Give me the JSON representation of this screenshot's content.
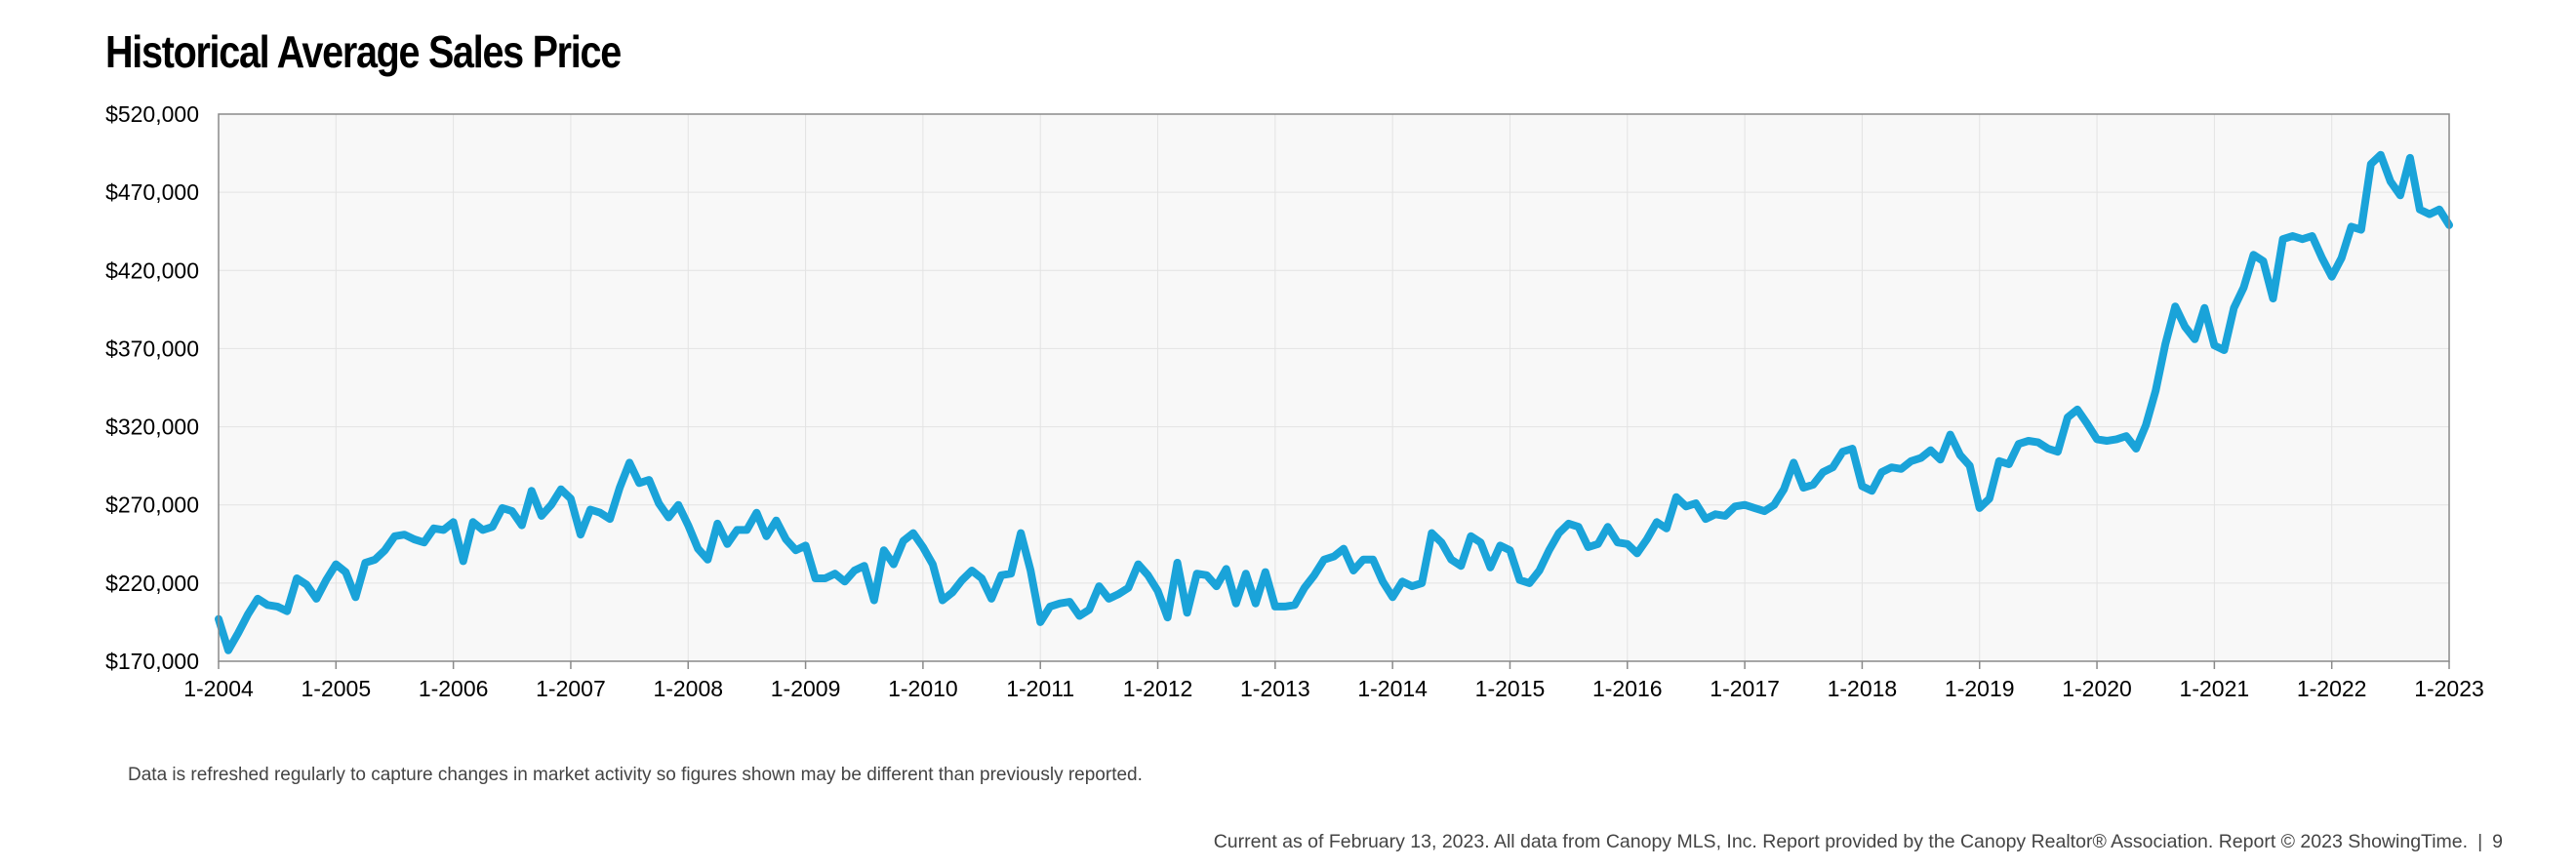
{
  "chart_data": {
    "type": "line",
    "title": "Historical Average Sales Price",
    "xlabel": "",
    "ylabel": "",
    "x_tick_labels": [
      "1-2004",
      "1-2005",
      "1-2006",
      "1-2007",
      "1-2008",
      "1-2009",
      "1-2010",
      "1-2011",
      "1-2012",
      "1-2013",
      "1-2014",
      "1-2015",
      "1-2016",
      "1-2017",
      "1-2018",
      "1-2019",
      "1-2020",
      "1-2021",
      "1-2022",
      "1-2023"
    ],
    "y_tick_labels": [
      "$520,000",
      "$470,000",
      "$420,000",
      "$370,000",
      "$320,000",
      "$270,000",
      "$220,000",
      "$170,000"
    ],
    "y_ticks": [
      520000,
      470000,
      420000,
      370000,
      320000,
      270000,
      220000,
      170000
    ],
    "xlim": [
      "2004-01",
      "2023-01"
    ],
    "ylim": [
      170000,
      520000
    ],
    "grid": true,
    "colors": {
      "line": "#1aa3d9",
      "plot_background": "#f8f8f8",
      "grid": "#e3e3e3",
      "axis": "#8a8a8a"
    },
    "series": [
      {
        "start": "2004-01",
        "frequency": "monthly",
        "values": [
          197000,
          177000,
          188000,
          200000,
          210000,
          206000,
          205000,
          202000,
          223000,
          219000,
          210000,
          222000,
          232000,
          227000,
          211000,
          233000,
          235000,
          241000,
          250000,
          251000,
          248000,
          246000,
          255000,
          254000,
          259000,
          234000,
          259000,
          254000,
          256000,
          268000,
          266000,
          257000,
          279000,
          263000,
          270000,
          280000,
          274000,
          251000,
          267000,
          265000,
          261000,
          281000,
          297000,
          284000,
          286000,
          271000,
          262000,
          270000,
          257000,
          242000,
          235000,
          258000,
          245000,
          254000,
          254000,
          265000,
          250000,
          260000,
          248000,
          241000,
          244000,
          223000,
          223000,
          226000,
          221000,
          228000,
          231000,
          209000,
          241000,
          232000,
          247000,
          252000,
          243000,
          232000,
          209000,
          214000,
          222000,
          228000,
          223000,
          210000,
          225000,
          226000,
          252000,
          228000,
          195000,
          205000,
          207000,
          208000,
          199000,
          203000,
          218000,
          210000,
          213000,
          217000,
          232000,
          225000,
          215000,
          198000,
          233000,
          201000,
          226000,
          225000,
          218000,
          229000,
          207000,
          226000,
          207000,
          227000,
          205000,
          205000,
          206000,
          217000,
          225000,
          235000,
          237000,
          242000,
          228000,
          235000,
          235000,
          221000,
          211000,
          221000,
          218000,
          220000,
          252000,
          246000,
          235000,
          231000,
          250000,
          246000,
          230000,
          244000,
          241000,
          222000,
          220000,
          228000,
          241000,
          252000,
          258000,
          256000,
          243000,
          245000,
          256000,
          246000,
          245000,
          239000,
          248000,
          259000,
          255000,
          275000,
          269000,
          271000,
          261000,
          264000,
          263000,
          269000,
          270000,
          268000,
          266000,
          270000,
          280000,
          297000,
          281000,
          283000,
          291000,
          294000,
          304000,
          306000,
          282000,
          279000,
          291000,
          294000,
          293000,
          298000,
          300000,
          305000,
          299000,
          315000,
          302000,
          295000,
          268000,
          274000,
          298000,
          296000,
          309000,
          311000,
          310000,
          306000,
          304000,
          326000,
          331000,
          322000,
          312000,
          311000,
          312000,
          314000,
          306000,
          321000,
          343000,
          373000,
          397000,
          384000,
          376000,
          396000,
          372000,
          369000,
          396000,
          409000,
          430000,
          426000,
          402000,
          440000,
          442000,
          440000,
          442000,
          428000,
          416000,
          428000,
          448000,
          446000,
          488000,
          494000,
          477000,
          468000,
          492000,
          459000,
          456000,
          459000,
          449000
        ]
      }
    ]
  },
  "notes": {
    "data_refresh": "Data is refreshed regularly to capture changes in market activity so figures shown may be different than previously reported."
  },
  "footer": {
    "text": "Current as of February 13, 2023. All data from Canopy MLS, Inc. Report provided by the Canopy Realtor® Association. Report © 2023 ShowingTime.",
    "separator": "|",
    "page_number": "9"
  }
}
